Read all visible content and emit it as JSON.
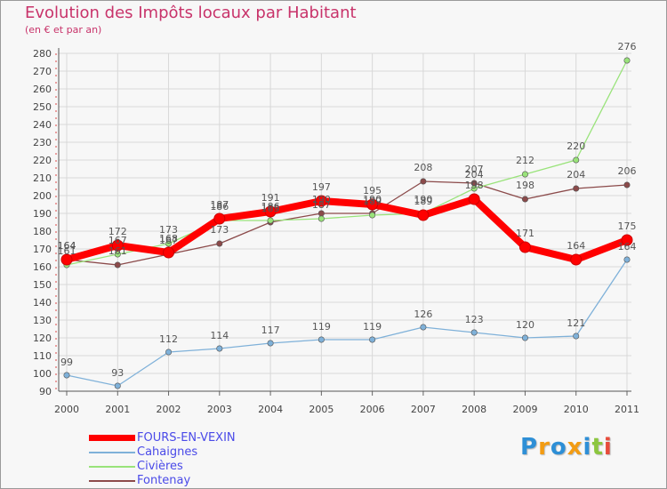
{
  "title": "Evolution des Impôts locaux par Habitant",
  "subtitle": "(en € et par an)",
  "chart_data": {
    "type": "line",
    "title": "Evolution des Impôts locaux par Habitant",
    "subtitle": "(en € et par an)",
    "xlabel": "",
    "ylabel": "",
    "x": [
      2000,
      2001,
      2002,
      2003,
      2004,
      2005,
      2006,
      2007,
      2008,
      2009,
      2010,
      2011
    ],
    "ylim": [
      90,
      280
    ],
    "yticks": [
      90,
      100,
      110,
      120,
      130,
      140,
      150,
      160,
      170,
      180,
      190,
      200,
      210,
      220,
      230,
      240,
      250,
      260,
      270,
      280
    ],
    "grid": true,
    "legend_position": "bottom-left",
    "series": [
      {
        "name": "FOURS-EN-VEXIN",
        "color": "#ff0000",
        "values": [
          164,
          172,
          168,
          187,
          191,
          197,
          195,
          189,
          198,
          171,
          164,
          175
        ]
      },
      {
        "name": "Cahaignes",
        "color": "#7fb1d9",
        "values": [
          99,
          93,
          112,
          114,
          117,
          119,
          119,
          126,
          123,
          120,
          121,
          164
        ]
      },
      {
        "name": "Civières",
        "color": "#99e37a",
        "values": [
          161,
          167,
          173,
          186,
          186,
          187,
          189,
          190,
          204,
          212,
          220,
          276
        ]
      },
      {
        "name": "Fontenay",
        "color": "#8b4a4a",
        "values": [
          164,
          161,
          167,
          173,
          185,
          190,
          190,
          208,
          207,
          198,
          204,
          206
        ]
      }
    ]
  },
  "legend": {
    "items": [
      {
        "label": "FOURS-EN-VEXIN",
        "color": "#ff0000"
      },
      {
        "label": "Cahaignes",
        "color": "#7fb1d9"
      },
      {
        "label": "Civières",
        "color": "#99e37a"
      },
      {
        "label": "Fontenay",
        "color": "#8b4a4a"
      }
    ]
  },
  "logo": {
    "letters": [
      {
        "ch": "P",
        "color": "#2e8fd6"
      },
      {
        "ch": "r",
        "color": "#f39c12"
      },
      {
        "ch": "o",
        "color": "#2e8fd6"
      },
      {
        "ch": "x",
        "color": "#f39c12"
      },
      {
        "ch": "i",
        "color": "#2e8fd6"
      },
      {
        "ch": "t",
        "color": "#8cc63f"
      },
      {
        "ch": "i",
        "color": "#e74c3c"
      }
    ]
  }
}
